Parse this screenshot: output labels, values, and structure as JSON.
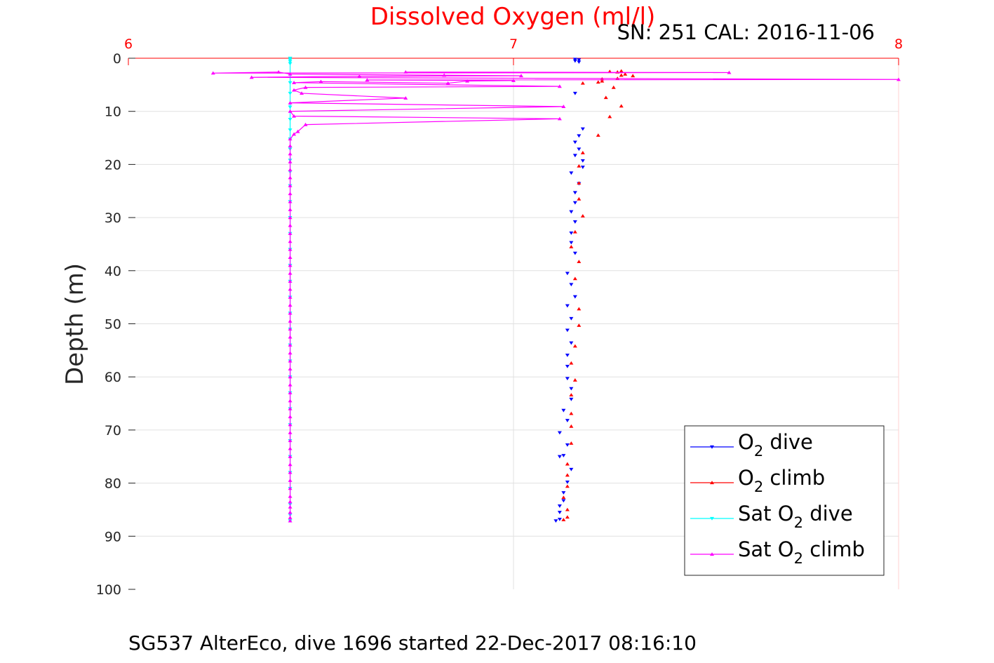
{
  "chart_data": {
    "type": "line",
    "title": "Dissolved Oxygen (ml/l)",
    "subtitle": "SN: 251  CAL: 2016-11-06",
    "footer": "SG537 AlterEco, dive 1696 started 22-Dec-2017 08:16:10",
    "ylabel": "Depth (m)",
    "xlabel": "",
    "xlim": [
      6,
      8
    ],
    "ylim": [
      0,
      100
    ],
    "y_reversed": true,
    "x_axis_position": "top",
    "xticks": [
      "6",
      "7",
      "8"
    ],
    "yticks": [
      "0",
      "10",
      "20",
      "30",
      "40",
      "50",
      "60",
      "70",
      "80",
      "90",
      "100"
    ],
    "grid": true,
    "legend_position": "bottom-right",
    "colors": {
      "title": "#ff0000",
      "xaxis": "#ff0000",
      "o2_dive": "#0000ff",
      "o2_climb": "#ff0000",
      "sat_dive": "#00ffff",
      "sat_climb": "#ff00ff",
      "grid": "#e0e0e0"
    },
    "series": [
      {
        "name": "O2 dive",
        "legend_main": "O",
        "legend_sub": "2",
        "legend_rest": " dive",
        "color": "#0000ff",
        "marker": "triangle-down",
        "line": false,
        "points": [
          [
            7.16,
            0.2
          ],
          [
            7.17,
            0.3
          ],
          [
            7.16,
            0.5
          ],
          [
            7.17,
            0.7
          ],
          [
            7.16,
            6.6
          ],
          [
            7.18,
            13.3
          ],
          [
            7.17,
            14.6
          ],
          [
            7.16,
            15.8
          ],
          [
            7.17,
            17.1
          ],
          [
            7.16,
            18.3
          ],
          [
            7.18,
            19.3
          ],
          [
            7.18,
            20.5
          ],
          [
            7.15,
            21.6
          ],
          [
            7.17,
            23.6
          ],
          [
            7.16,
            25.3
          ],
          [
            7.16,
            27.2
          ],
          [
            7.15,
            28.9
          ],
          [
            7.16,
            30.8
          ],
          [
            7.15,
            32.9
          ],
          [
            7.15,
            34.7
          ],
          [
            7.16,
            36.7
          ],
          [
            7.14,
            40.5
          ],
          [
            7.15,
            42.6
          ],
          [
            7.16,
            44.9
          ],
          [
            7.14,
            46.6
          ],
          [
            7.15,
            49.0
          ],
          [
            7.14,
            51.2
          ],
          [
            7.15,
            53.6
          ],
          [
            7.14,
            55.9
          ],
          [
            7.14,
            58.0
          ],
          [
            7.14,
            60.3
          ],
          [
            7.15,
            62.2
          ],
          [
            7.15,
            64.2
          ],
          [
            7.13,
            66.3
          ],
          [
            7.14,
            68.2
          ],
          [
            7.12,
            70.5
          ],
          [
            7.14,
            72.8
          ],
          [
            7.13,
            74.8
          ],
          [
            7.12,
            75.0
          ],
          [
            7.15,
            77.4
          ],
          [
            7.14,
            79.8
          ],
          [
            7.13,
            81.8
          ],
          [
            7.13,
            83.3
          ],
          [
            7.12,
            84.3
          ],
          [
            7.12,
            85.5
          ],
          [
            7.12,
            86.8
          ],
          [
            7.11,
            87.1
          ]
        ]
      },
      {
        "name": "O2 climb",
        "legend_main": "O",
        "legend_sub": "2",
        "legend_rest": " climb",
        "color": "#ff0000",
        "marker": "triangle-up",
        "line": false,
        "points": [
          [
            7.18,
            4.7
          ],
          [
            7.22,
            4.5
          ],
          [
            7.23,
            4.3
          ],
          [
            7.24,
            7.4
          ],
          [
            7.26,
            5.5
          ],
          [
            7.25,
            2.5
          ],
          [
            7.27,
            3.8
          ],
          [
            7.28,
            2.4
          ],
          [
            7.29,
            3.0
          ],
          [
            7.31,
            3.3
          ],
          [
            7.28,
            3.2
          ],
          [
            7.23,
            3.9
          ],
          [
            7.27,
            2.6
          ],
          [
            7.25,
            11.0
          ],
          [
            7.28,
            9.0
          ],
          [
            7.22,
            14.5
          ],
          [
            7.18,
            17.8
          ],
          [
            7.17,
            20.3
          ],
          [
            7.17,
            23.5
          ],
          [
            7.17,
            26.5
          ],
          [
            7.18,
            29.7
          ],
          [
            7.16,
            32.7
          ],
          [
            7.15,
            35.5
          ],
          [
            7.17,
            38.3
          ],
          [
            7.16,
            41.5
          ],
          [
            7.17,
            47.2
          ],
          [
            7.17,
            50.3
          ],
          [
            7.16,
            54.2
          ],
          [
            7.15,
            57.4
          ],
          [
            7.16,
            60.6
          ],
          [
            7.15,
            63.4
          ],
          [
            7.15,
            66.9
          ],
          [
            7.15,
            69.3
          ],
          [
            7.15,
            72.5
          ],
          [
            7.14,
            76.4
          ],
          [
            7.14,
            78.5
          ],
          [
            7.14,
            80.6
          ],
          [
            7.13,
            82.7
          ],
          [
            7.14,
            85.0
          ],
          [
            7.14,
            86.4
          ],
          [
            7.13,
            86.9
          ]
        ]
      },
      {
        "name": "Sat O2 dive",
        "legend_main": "Sat O",
        "legend_sub": "2",
        "legend_rest": " dive",
        "color": "#00ffff",
        "marker": "triangle-down",
        "line": true,
        "points": [
          [
            6.42,
            0.0
          ],
          [
            6.42,
            0.3
          ],
          [
            6.42,
            0.6
          ],
          [
            6.42,
            1.0
          ],
          [
            6.42,
            4.6
          ],
          [
            6.42,
            6.6
          ],
          [
            6.42,
            9.2
          ],
          [
            6.42,
            11.5
          ],
          [
            6.42,
            13.5
          ],
          [
            6.42,
            15.2
          ],
          [
            6.42,
            17.1
          ],
          [
            6.42,
            19.2
          ],
          [
            6.42,
            21.4
          ],
          [
            6.42,
            24.0
          ],
          [
            6.42,
            27.0
          ],
          [
            6.42,
            30.0
          ],
          [
            6.42,
            33.0
          ],
          [
            6.42,
            36.0
          ],
          [
            6.42,
            39.0
          ],
          [
            6.42,
            42.0
          ],
          [
            6.42,
            45.0
          ],
          [
            6.42,
            48.0
          ],
          [
            6.42,
            51.0
          ],
          [
            6.42,
            54.0
          ],
          [
            6.42,
            57.0
          ],
          [
            6.42,
            60.0
          ],
          [
            6.42,
            63.0
          ],
          [
            6.42,
            66.0
          ],
          [
            6.42,
            69.0
          ],
          [
            6.42,
            72.0
          ],
          [
            6.42,
            75.0
          ],
          [
            6.42,
            78.0
          ],
          [
            6.42,
            81.0
          ],
          [
            6.42,
            84.0
          ],
          [
            6.42,
            86.0
          ],
          [
            6.42,
            87.1
          ]
        ]
      },
      {
        "name": "Sat O2 climb",
        "legend_main": "Sat O",
        "legend_sub": "2",
        "legend_rest": " climb",
        "color": "#ff00ff",
        "marker": "triangle-up",
        "line": true,
        "points": [
          [
            6.42,
            87.1
          ],
          [
            6.42,
            86.5
          ],
          [
            6.42,
            85.5
          ],
          [
            6.42,
            84.5
          ],
          [
            6.42,
            83.5
          ],
          [
            6.42,
            82.5
          ],
          [
            6.42,
            81.0
          ],
          [
            6.42,
            79.5
          ],
          [
            6.42,
            78.0
          ],
          [
            6.42,
            76.5
          ],
          [
            6.42,
            75.0
          ],
          [
            6.42,
            73.5
          ],
          [
            6.42,
            72.0
          ],
          [
            6.42,
            70.5
          ],
          [
            6.42,
            69.0
          ],
          [
            6.42,
            67.5
          ],
          [
            6.42,
            66.0
          ],
          [
            6.42,
            64.5
          ],
          [
            6.42,
            63.0
          ],
          [
            6.42,
            61.5
          ],
          [
            6.42,
            60.0
          ],
          [
            6.42,
            58.5
          ],
          [
            6.42,
            57.0
          ],
          [
            6.42,
            55.5
          ],
          [
            6.42,
            54.0
          ],
          [
            6.42,
            52.5
          ],
          [
            6.42,
            51.0
          ],
          [
            6.42,
            49.5
          ],
          [
            6.42,
            48.0
          ],
          [
            6.42,
            46.5
          ],
          [
            6.42,
            45.0
          ],
          [
            6.42,
            43.5
          ],
          [
            6.42,
            42.0
          ],
          [
            6.42,
            40.5
          ],
          [
            6.42,
            39.0
          ],
          [
            6.42,
            37.5
          ],
          [
            6.42,
            36.0
          ],
          [
            6.42,
            34.5
          ],
          [
            6.42,
            33.0
          ],
          [
            6.42,
            31.5
          ],
          [
            6.42,
            30.0
          ],
          [
            6.42,
            28.5
          ],
          [
            6.42,
            27.0
          ],
          [
            6.42,
            25.5
          ],
          [
            6.42,
            24.0
          ],
          [
            6.42,
            22.5
          ],
          [
            6.42,
            21.0
          ],
          [
            6.42,
            19.5
          ],
          [
            6.42,
            18.0
          ],
          [
            6.42,
            16.5
          ],
          [
            6.42,
            15.2
          ],
          [
            6.43,
            14.3
          ],
          [
            6.44,
            13.8
          ],
          [
            6.46,
            12.5
          ],
          [
            7.12,
            11.4
          ],
          [
            6.43,
            10.9
          ],
          [
            6.42,
            10.0
          ],
          [
            7.13,
            9.1
          ],
          [
            6.42,
            8.4
          ],
          [
            6.72,
            7.5
          ],
          [
            6.45,
            6.6
          ],
          [
            6.43,
            6.0
          ],
          [
            6.46,
            5.5
          ],
          [
            7.12,
            5.3
          ],
          [
            6.43,
            4.6
          ],
          [
            6.5,
            4.4
          ],
          [
            6.83,
            4.7
          ],
          [
            6.88,
            4.3
          ],
          [
            7.0,
            4.2
          ],
          [
            6.62,
            4.1
          ],
          [
            8.0,
            4.0
          ],
          [
            6.32,
            3.6
          ],
          [
            6.6,
            3.4
          ],
          [
            7.02,
            3.3
          ],
          [
            6.82,
            3.2
          ],
          [
            6.42,
            3.0
          ],
          [
            6.39,
            2.6
          ],
          [
            6.22,
            2.8
          ],
          [
            7.56,
            2.7
          ],
          [
            6.72,
            2.6
          ]
        ]
      }
    ]
  }
}
